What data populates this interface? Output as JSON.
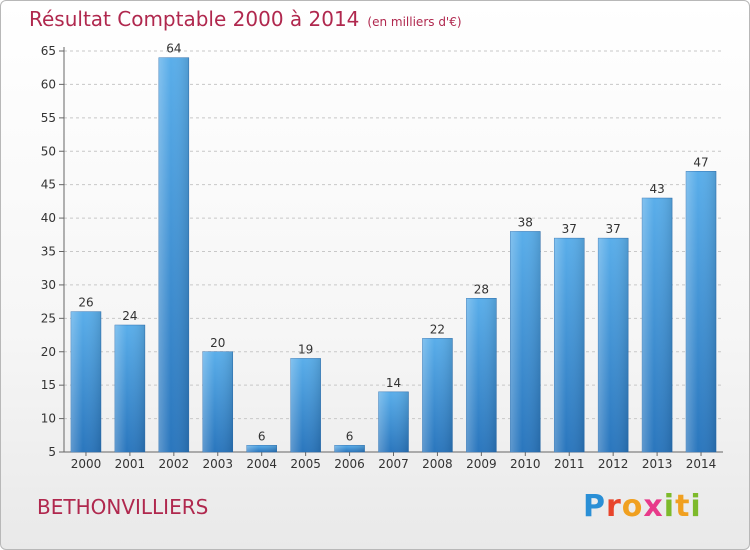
{
  "header": {
    "title": "Résultat Comptable 2000 à 2014",
    "unit": "(en milliers d'€)"
  },
  "footer": {
    "commune": "BETHONVILLIERS",
    "logo_text": "Proxiti"
  },
  "chart_data": {
    "type": "bar",
    "title": "Résultat Comptable 2000 à 2014",
    "subtitle": "(en milliers d'€)",
    "categories": [
      "2000",
      "2001",
      "2002",
      "2003",
      "2004",
      "2005",
      "2006",
      "2007",
      "2008",
      "2009",
      "2010",
      "2011",
      "2012",
      "2013",
      "2014"
    ],
    "values": [
      26,
      24,
      64,
      20,
      6,
      19,
      6,
      14,
      22,
      28,
      38,
      37,
      37,
      43,
      47
    ],
    "ylim": [
      5,
      65
    ],
    "yticks": [
      5,
      10,
      15,
      20,
      25,
      30,
      35,
      40,
      45,
      50,
      55,
      60,
      65
    ],
    "grid": "horizontal dashed",
    "colors": {
      "bar": "#4a9fe0",
      "bar_dark": "#2a76bd",
      "title": "#b0284e"
    }
  }
}
